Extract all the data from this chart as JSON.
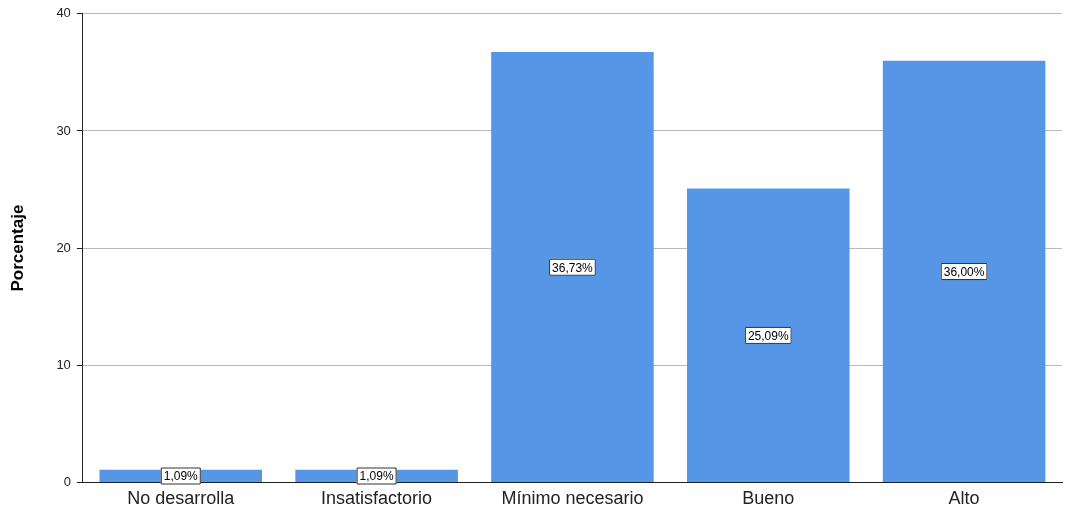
{
  "chart_data": {
    "type": "bar",
    "ylabel": "Porcentaje",
    "categories": [
      "No desarrolla",
      "Insatisfactorio",
      "Mínimo necesario",
      "Bueno",
      "Alto"
    ],
    "values": [
      1.09,
      1.09,
      36.73,
      25.09,
      36.0
    ],
    "value_labels": [
      "1,09%",
      "1,09%",
      "36,73%",
      "25,09%",
      "36,00%"
    ],
    "color": "#5596e6",
    "ylim": [
      0,
      40
    ],
    "yticks": [
      0,
      10,
      20,
      30,
      40
    ],
    "grid": "y",
    "legend": false
  }
}
